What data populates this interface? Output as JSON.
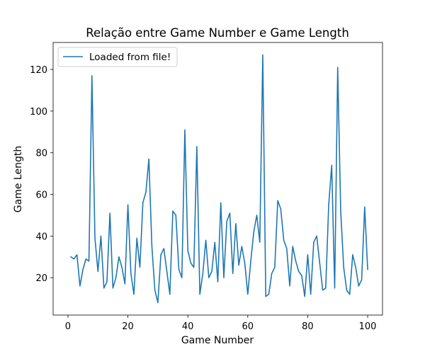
{
  "chart_data": {
    "type": "line",
    "title": "Relação entre Game Number e Game Length",
    "xlabel": "Game Number",
    "ylabel": "Game Length",
    "xlim": [
      -4.95,
      104.95
    ],
    "ylim": [
      2.05,
      132.95
    ],
    "xticks": [
      0,
      20,
      40,
      60,
      80,
      100
    ],
    "yticks": [
      20,
      40,
      60,
      80,
      100,
      120
    ],
    "grid": false,
    "legend_position": "upper-left",
    "series": [
      {
        "name": "Loaded from file!",
        "color": "#1f77b4",
        "x": [
          1,
          2,
          3,
          4,
          5,
          6,
          7,
          8,
          9,
          10,
          11,
          12,
          13,
          14,
          15,
          16,
          17,
          18,
          19,
          20,
          21,
          22,
          23,
          24,
          25,
          26,
          27,
          28,
          29,
          30,
          31,
          32,
          33,
          34,
          35,
          36,
          37,
          38,
          39,
          40,
          41,
          42,
          43,
          44,
          45,
          46,
          47,
          48,
          49,
          50,
          51,
          52,
          53,
          54,
          55,
          56,
          57,
          58,
          59,
          60,
          61,
          62,
          63,
          64,
          65,
          66,
          67,
          68,
          69,
          70,
          71,
          72,
          73,
          74,
          75,
          76,
          77,
          78,
          79,
          80,
          81,
          82,
          83,
          84,
          85,
          86,
          87,
          88,
          89,
          90,
          91,
          92,
          93,
          94,
          95,
          96,
          97,
          98,
          99,
          100
        ],
        "values": [
          30,
          29,
          31,
          16,
          24,
          29,
          28,
          117,
          39,
          23,
          40,
          15,
          18,
          51,
          15,
          20,
          30,
          25,
          17,
          55,
          22,
          12,
          39,
          25,
          56,
          61,
          77,
          35,
          14,
          8,
          31,
          34,
          23,
          12,
          52,
          50,
          24,
          20,
          91,
          33,
          27,
          25,
          83,
          12,
          22,
          38,
          20,
          23,
          37,
          18,
          56,
          20,
          47,
          51,
          22,
          46,
          26,
          35,
          27,
          12,
          28,
          42,
          50,
          37,
          127,
          11,
          12,
          22,
          25,
          57,
          53,
          38,
          34,
          16,
          35,
          28,
          23,
          21,
          11,
          31,
          12,
          37,
          40,
          27,
          14,
          15,
          55,
          74,
          15,
          121,
          52,
          25,
          14,
          12,
          31,
          25,
          16,
          19,
          54,
          24
        ]
      }
    ]
  }
}
